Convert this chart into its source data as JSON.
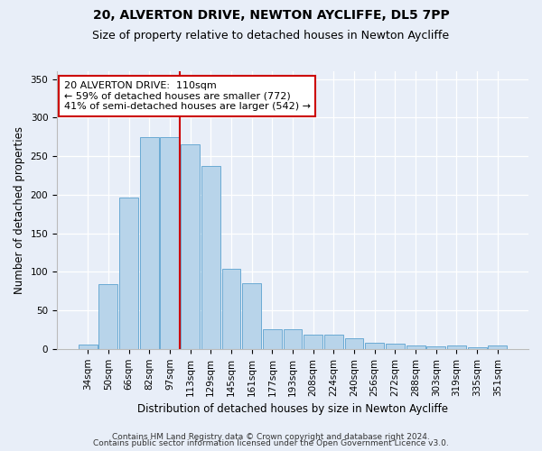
{
  "title1": "20, ALVERTON DRIVE, NEWTON AYCLIFFE, DL5 7PP",
  "title2": "Size of property relative to detached houses in Newton Aycliffe",
  "xlabel": "Distribution of detached houses by size in Newton Aycliffe",
  "ylabel": "Number of detached properties",
  "categories": [
    "34sqm",
    "50sqm",
    "66sqm",
    "82sqm",
    "97sqm",
    "113sqm",
    "129sqm",
    "145sqm",
    "161sqm",
    "177sqm",
    "193sqm",
    "208sqm",
    "224sqm",
    "240sqm",
    "256sqm",
    "272sqm",
    "288sqm",
    "303sqm",
    "319sqm",
    "335sqm",
    "351sqm"
  ],
  "values": [
    6,
    84,
    196,
    275,
    275,
    265,
    237,
    104,
    85,
    26,
    26,
    19,
    19,
    14,
    8,
    7,
    4,
    3,
    4,
    2,
    4
  ],
  "bar_color": "#b8d4ea",
  "bar_edge_color": "#6aaad4",
  "bar_edge_width": 0.7,
  "vline_x_index": 5,
  "vline_color": "#cc0000",
  "annotation_line1": "20 ALVERTON DRIVE:  110sqm",
  "annotation_line2": "← 59% of detached houses are smaller (772)",
  "annotation_line3": "41% of semi-detached houses are larger (542) →",
  "annotation_box_color": "#ffffff",
  "annotation_box_edge_color": "#cc0000",
  "ylim": [
    0,
    360
  ],
  "yticks": [
    0,
    50,
    100,
    150,
    200,
    250,
    300,
    350
  ],
  "bg_color": "#e8eef8",
  "plot_bg_color": "#e8eef8",
  "footer1": "Contains HM Land Registry data © Crown copyright and database right 2024.",
  "footer2": "Contains public sector information licensed under the Open Government Licence v3.0.",
  "title1_fontsize": 10,
  "title2_fontsize": 9,
  "xlabel_fontsize": 8.5,
  "ylabel_fontsize": 8.5,
  "tick_fontsize": 7.5,
  "annotation_fontsize": 8,
  "footer_fontsize": 6.5
}
